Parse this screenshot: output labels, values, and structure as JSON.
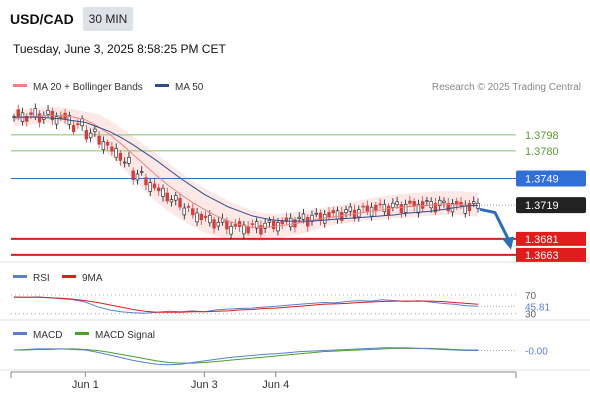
{
  "header": {
    "symbol": "USD/CAD",
    "timeframe": "30 MIN",
    "datetime": "Tuesday, June 3, 2025 8:58:25 PM CET"
  },
  "legend": {
    "ma20_label": "MA 20 + Bollinger Bands",
    "ma50_label": "MA 50",
    "copyright": "Research © 2025 Trading Central"
  },
  "colors": {
    "ma20": "#f08080",
    "ma50": "#2e4e8a",
    "bollinger_fill": "#fde4e4",
    "resistance": "#8dc06a",
    "pivot": "#2f6fd6",
    "support": "#e01c1c",
    "last_price": "#222222",
    "candle_up": "#1a1a1a",
    "candle_down": "#d04040",
    "rsi": "#5b7fd6",
    "rsi_ma": "#e01c1c",
    "macd": "#5b7fd6",
    "macd_signal": "#4aa02c"
  },
  "chart_data": [
    {
      "type": "candlestick",
      "ylim": [
        1.3655,
        1.3835
      ],
      "levels": [
        {
          "value": 1.3798,
          "label": "1.3798",
          "role": "resistance"
        },
        {
          "value": 1.378,
          "label": "1.3780",
          "role": "resistance"
        },
        {
          "value": 1.3749,
          "label": "1.3749",
          "role": "pivot"
        },
        {
          "value": 1.3719,
          "label": "1.3719",
          "role": "last"
        },
        {
          "value": 1.3681,
          "label": "1.3681",
          "role": "support"
        },
        {
          "value": 1.3663,
          "label": "1.3663",
          "role": "support"
        }
      ],
      "forecast_arrow": {
        "from": 1.3714,
        "to": 1.367,
        "direction": "down"
      },
      "series": [
        {
          "name": "MA 20",
          "values": [
            1.3816,
            1.3818,
            1.3819,
            1.382,
            1.382,
            1.3818,
            1.3815,
            1.3808,
            1.3799,
            1.3788,
            1.3776,
            1.3764,
            1.3752,
            1.3741,
            1.3731,
            1.3722,
            1.3714,
            1.3707,
            1.3701,
            1.3697,
            1.3694,
            1.3694,
            1.3695,
            1.3697,
            1.3699,
            1.3702,
            1.3704,
            1.3706,
            1.3708,
            1.371,
            1.3712,
            1.3714,
            1.3716,
            1.3717,
            1.3718,
            1.3719,
            1.372,
            1.372,
            1.3719,
            1.3718
          ]
        },
        {
          "name": "MA 50",
          "values": [
            1.3818,
            1.3818,
            1.3818,
            1.3817,
            1.3816,
            1.3814,
            1.3812,
            1.3807,
            1.3802,
            1.3795,
            1.3787,
            1.3778,
            1.3769,
            1.3759,
            1.3749,
            1.374,
            1.3731,
            1.3724,
            1.3717,
            1.3712,
            1.3707,
            1.3704,
            1.3702,
            1.3701,
            1.3701,
            1.3701,
            1.3702,
            1.3703,
            1.3704,
            1.3705,
            1.3706,
            1.3707,
            1.3708,
            1.371,
            1.3711,
            1.3712,
            1.3714,
            1.3716,
            1.3718,
            1.3719
          ]
        },
        {
          "name": "Bollinger Upper",
          "values": [
            1.3825,
            1.3827,
            1.3828,
            1.3829,
            1.3829,
            1.3827,
            1.3824,
            1.3822,
            1.3815,
            1.3806,
            1.3796,
            1.3786,
            1.3776,
            1.3766,
            1.3756,
            1.3746,
            1.3738,
            1.3731,
            1.3724,
            1.3718,
            1.3713,
            1.371,
            1.3709,
            1.371,
            1.3712,
            1.3714,
            1.3716,
            1.3718,
            1.3721,
            1.3724,
            1.3727,
            1.3729,
            1.3731,
            1.3732,
            1.3733,
            1.3734,
            1.3735,
            1.3735,
            1.3734,
            1.3733
          ]
        },
        {
          "name": "Bollinger Lower",
          "values": [
            1.3807,
            1.3809,
            1.381,
            1.3811,
            1.3811,
            1.3809,
            1.3806,
            1.379,
            1.3775,
            1.3763,
            1.3748,
            1.3735,
            1.3722,
            1.3712,
            1.3703,
            1.3695,
            1.3688,
            1.3684,
            1.3681,
            1.368,
            1.3679,
            1.3679,
            1.3681,
            1.3684,
            1.3686,
            1.369,
            1.3694,
            1.3697,
            1.3699,
            1.3701,
            1.3702,
            1.3703,
            1.3704,
            1.3705,
            1.3706,
            1.3707,
            1.3708,
            1.3708,
            1.3707,
            1.3706
          ]
        }
      ]
    },
    {
      "type": "line",
      "title": "RSI",
      "ylim": [
        25,
        85
      ],
      "levels": [
        {
          "value": 70,
          "label": "70"
        },
        {
          "value": 30,
          "label": "30"
        }
      ],
      "current": {
        "value": 45.81,
        "label": "45.81"
      },
      "series": [
        {
          "name": "RSI",
          "values": [
            66,
            65,
            66,
            64,
            62,
            60,
            55,
            45,
            38,
            34,
            32,
            31,
            33,
            35,
            34,
            36,
            34,
            38,
            40,
            41,
            42,
            44,
            46,
            48,
            50,
            52,
            54,
            53,
            56,
            58,
            57,
            60,
            58,
            56,
            58,
            55,
            52,
            50,
            47,
            46
          ]
        },
        {
          "name": "9MA",
          "values": [
            65,
            65,
            65,
            64,
            63,
            61,
            58,
            54,
            49,
            44,
            39,
            35,
            33,
            33,
            33,
            34,
            34,
            35,
            36,
            38,
            39,
            41,
            42,
            44,
            46,
            48,
            50,
            51,
            52,
            54,
            55,
            56,
            57,
            57,
            57,
            57,
            56,
            54,
            52,
            50
          ]
        }
      ]
    },
    {
      "type": "line",
      "title": "MACD",
      "ylim": [
        -0.0032,
        0.0012
      ],
      "current": {
        "value": 0.0,
        "label": "-0.00"
      },
      "series": [
        {
          "name": "MACD",
          "values": [
            0.0001,
            0.0002,
            0.0003,
            0.0003,
            0.0003,
            0.0002,
            0.0001,
            -0.0003,
            -0.0008,
            -0.0013,
            -0.0018,
            -0.0022,
            -0.0025,
            -0.0026,
            -0.0025,
            -0.0022,
            -0.0019,
            -0.0016,
            -0.0013,
            -0.0011,
            -0.0009,
            -0.0007,
            -0.0006,
            -0.0004,
            -0.0002,
            -0.0001,
            0.0,
            0.0001,
            0.0002,
            0.0003,
            0.0004,
            0.0005,
            0.0005,
            0.0005,
            0.0004,
            0.0003,
            0.0002,
            0.0001,
            0.0,
            0.0
          ]
        },
        {
          "name": "MACD Signal",
          "values": [
            0.0001,
            0.0001,
            0.0002,
            0.0002,
            0.0003,
            0.0003,
            0.0002,
            0.0,
            -0.0003,
            -0.0007,
            -0.0011,
            -0.0015,
            -0.0019,
            -0.0022,
            -0.0023,
            -0.0023,
            -0.0022,
            -0.002,
            -0.0018,
            -0.0016,
            -0.0014,
            -0.0012,
            -0.001,
            -0.0008,
            -0.0006,
            -0.0004,
            -0.0002,
            -0.0001,
            0.0,
            0.0001,
            0.0002,
            0.0003,
            0.0004,
            0.0004,
            0.0004,
            0.0004,
            0.0003,
            0.0002,
            0.0001,
            0.0001
          ]
        }
      ]
    }
  ],
  "xaxis": {
    "ticks": [
      {
        "label": "Jun 1",
        "index": 6
      },
      {
        "label": "Jun 3",
        "index": 16
      },
      {
        "label": "Jun 4",
        "index": 22
      }
    ]
  },
  "indicator_legends": {
    "rsi_label": "RSI",
    "rsi_ma_label": "9MA",
    "macd_label": "MACD",
    "macd_signal_label": "MACD Signal"
  }
}
